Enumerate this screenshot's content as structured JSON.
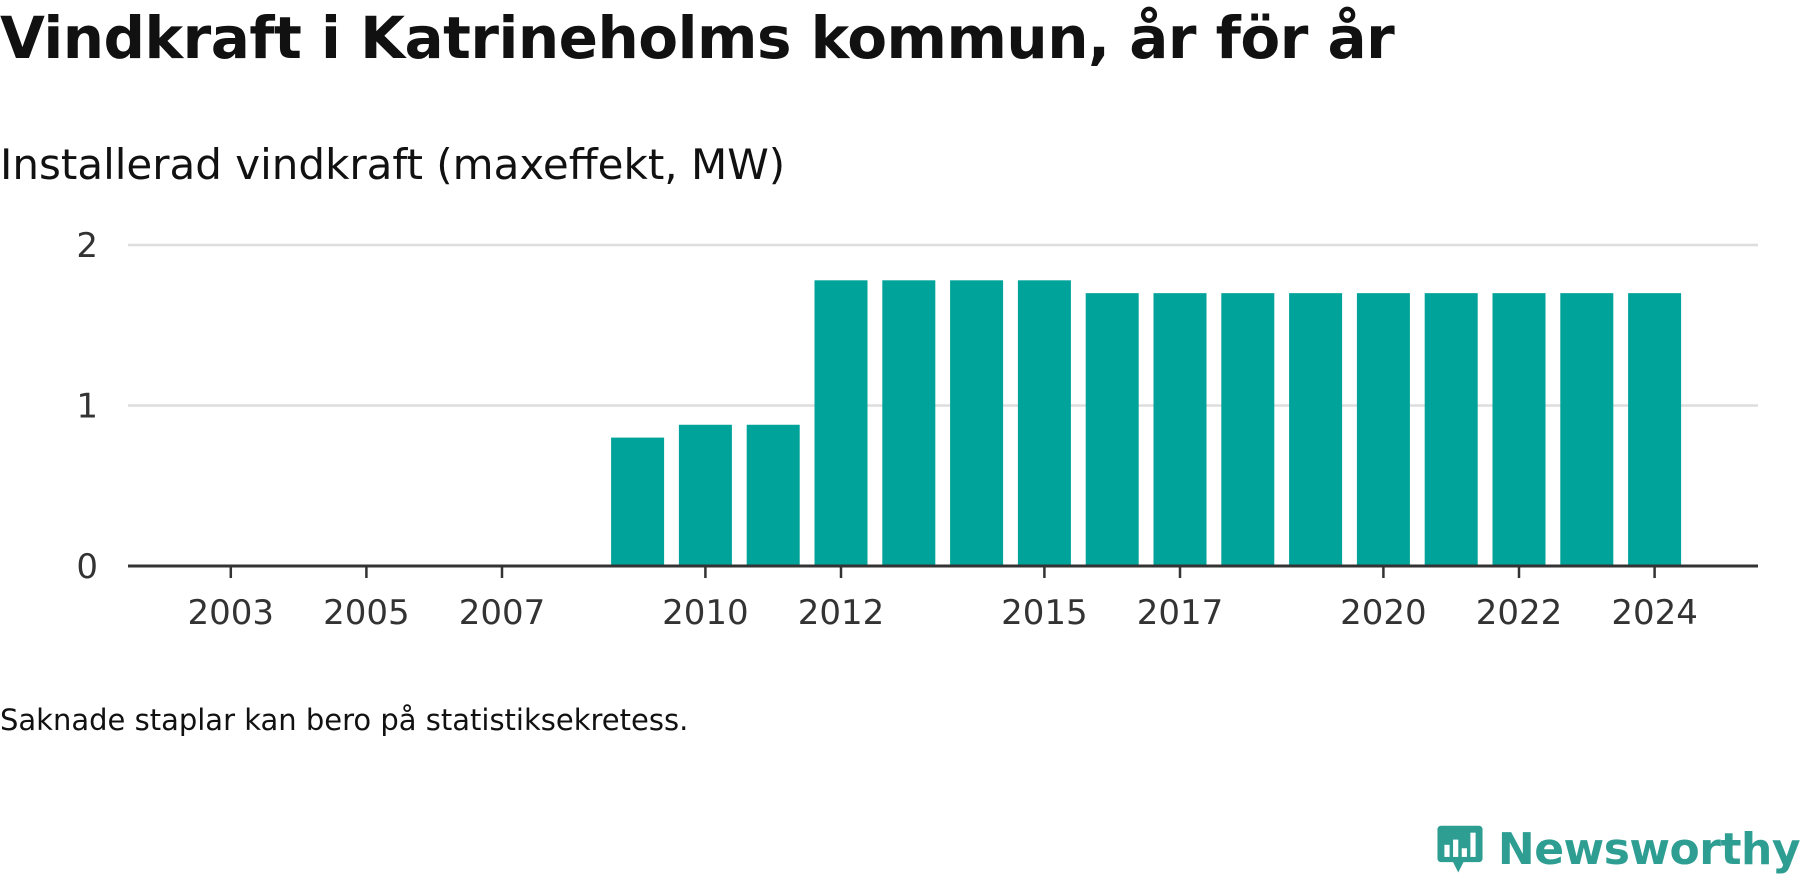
{
  "title": "Vindkraft i Katrineholms kommun, år för år",
  "subtitle": "Installerad vindkraft (maxeffekt, MW)",
  "footnote": "Saknade staplar kan bero på statistiksekretess.",
  "brand": {
    "name": "Newsworthy",
    "color": "#2e9e93"
  },
  "colors": {
    "bar": "#00a39a",
    "grid": "#dddddd",
    "axis": "#333333",
    "text": "#111111",
    "tick_text": "#333333"
  },
  "chart_data": {
    "type": "bar",
    "categories": [
      "2002",
      "2003",
      "2004",
      "2005",
      "2006",
      "2007",
      "2008",
      "2009",
      "2010",
      "2011",
      "2012",
      "2013",
      "2014",
      "2015",
      "2016",
      "2017",
      "2018",
      "2019",
      "2020",
      "2021",
      "2022",
      "2023",
      "2024"
    ],
    "values": [
      0,
      0,
      0,
      0,
      0,
      0,
      0,
      0.8,
      0.88,
      0.88,
      1.78,
      1.78,
      1.78,
      1.78,
      1.7,
      1.7,
      1.7,
      1.7,
      1.7,
      1.7,
      1.7,
      1.7,
      1.7
    ],
    "x_tick_labels": [
      "2003",
      "2005",
      "2007",
      "2010",
      "2012",
      "2015",
      "2017",
      "2020",
      "2022",
      "2024"
    ],
    "y_ticks": [
      0,
      1,
      2
    ],
    "ylim": [
      0,
      2
    ],
    "title": "Vindkraft i Katrineholms kommun, år för år",
    "ylabel": "Installerad vindkraft (maxeffekt, MW)",
    "xlabel": "",
    "grid": true,
    "legend": "none"
  }
}
